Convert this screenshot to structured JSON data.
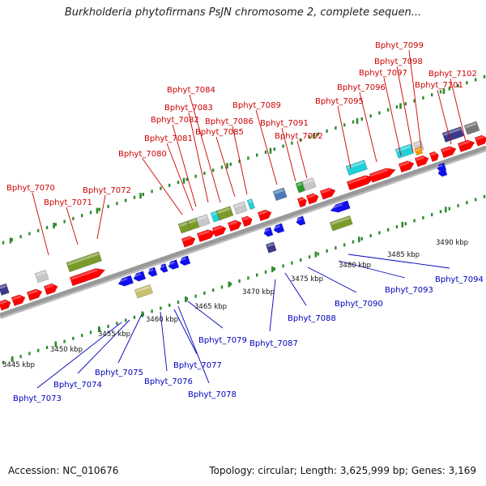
{
  "title": "Burkholderia phytofirmans PsJN chromosome 2, complete sequen...",
  "footer": {
    "accession": "Accession: NC_010676",
    "summary": "Topology: circular; Length: 3,625,999 bp; Genes: 3,169"
  },
  "colors": {
    "forward_label": "#cc0000",
    "reverse_label": "#0000bb",
    "backbone": "#999999",
    "tick": "#2e8b2e"
  },
  "kbp_labels": [
    "3445 kbp",
    "3450 kbp",
    "3455 kbp",
    "3460 kbp",
    "3465 kbp",
    "3470 kbp",
    "3475 kbp",
    "3480 kbp",
    "3485 kbp",
    "3490 kbp"
  ],
  "forward_genes": [
    "Bphyt_7070",
    "Bphyt_7071",
    "Bphyt_7072",
    "Bphyt_7080",
    "Bphyt_7081",
    "Bphyt_7082",
    "Bphyt_7083",
    "Bphyt_7084",
    "Bphyt_7085",
    "Bphyt_7086",
    "Bphyt_7089",
    "Bphyt_7091",
    "Bphyt_7092",
    "Bphyt_7095",
    "Bphyt_7096",
    "Bphyt_7097",
    "Bphyt_7098",
    "Bphyt_7099",
    "Bphyt_7101",
    "Bphyt_7102"
  ],
  "reverse_genes": [
    "Bphyt_7073",
    "Bphyt_7074",
    "Bphyt_7075",
    "Bphyt_7076",
    "Bphyt_7077",
    "Bphyt_7078",
    "Bphyt_7079",
    "Bphyt_7087",
    "Bphyt_7088",
    "Bphyt_7090",
    "Bphyt_7093",
    "Bphyt_7094"
  ]
}
